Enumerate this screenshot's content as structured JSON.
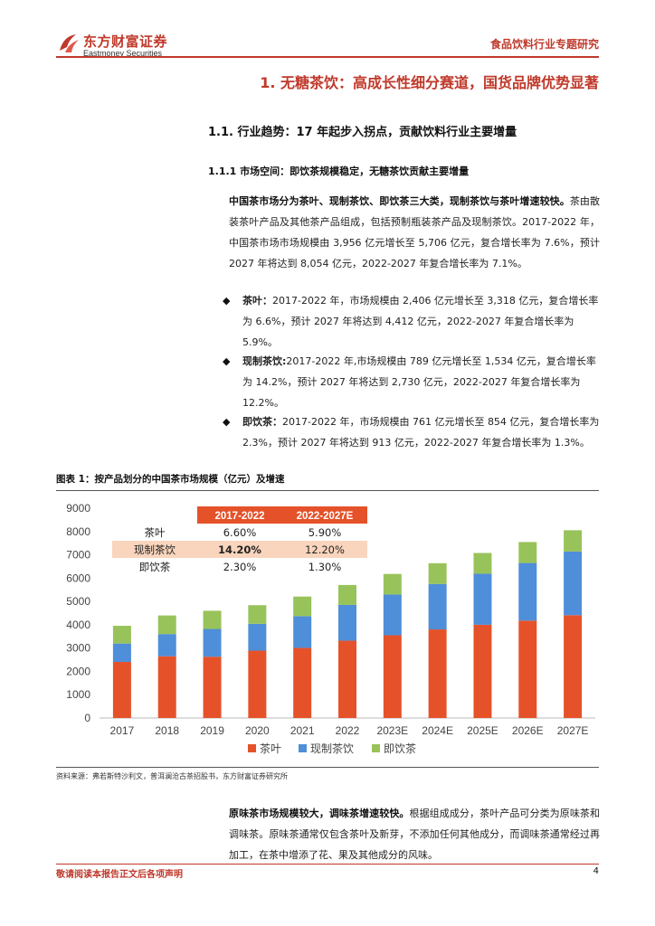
{
  "header": {
    "logo_cn": "东方财富证券",
    "logo_en": "Eastmoney Securities",
    "report_type": "食品饮料行业专题研究"
  },
  "section1": {
    "title": "1. 无糖茶饮：高成长性细分赛道，国货品牌优势显著"
  },
  "section1_1": {
    "title": "1.1. 行业趋势：17 年起步入拐点，贡献饮料行业主要增量"
  },
  "section1_1_1": {
    "title": "1.1.1 市场空间：即饮茶规模稳定，无糖茶饮贡献主要增量"
  },
  "intro": {
    "bold": "中国茶市场分为茶叶、现制茶饮、即饮茶三大类，现制茶饮与茶叶增速较快。",
    "text": "茶由散装茶叶产品及其他茶产品组成，包括预制瓶装茶产品及现制茶饮。2017-2022 年，中国茶市场市场规模由 3,956 亿元增长至 5,706 亿元，复合增长率为 7.6%，预计 2027 年将达到 8,054 亿元，2022-2027 年复合增长率为 7.1%。"
  },
  "bullets": [
    {
      "bold": "茶叶：",
      "text": "2017-2022 年，市场规模由 2,406 亿元增长至 3,318 亿元，复合增长率为 6.6%，预计 2027 年将达到 4,412 亿元，2022-2027 年复合增长率为 5.9%。"
    },
    {
      "bold": "现制茶饮:",
      "text": "2017-2022 年,市场规模由 789 亿元增长至 1,534 亿元，复合增长率为 14.2%，预计 2027 年将达到 2,730 亿元，2022-2027 年复合增长率为 12.2%。"
    },
    {
      "bold": "即饮茶：",
      "text": "2017-2022 年，市场规模由 761 亿元增长至 854 亿元，复合增长率为 2.3%，预计 2027 年将达到 913 亿元，2022-2027 年复合增长率为 1.3%。"
    }
  ],
  "figure": {
    "title": "图表 1：按产品划分的中国茶市场规模（亿元）及增速",
    "source": "资料来源：弗若斯特沙利文，普洱澜沧古茶招股书，东方财富证券研究所"
  },
  "chart_data": {
    "type": "bar",
    "stacked": true,
    "categories": [
      "2017",
      "2018",
      "2019",
      "2020",
      "2021",
      "2022",
      "2023E",
      "2024E",
      "2025E",
      "2026E",
      "2027E"
    ],
    "series": [
      {
        "name": "茶叶",
        "color": "#e5522a",
        "values": [
          2406,
          2650,
          2630,
          2890,
          3010,
          3318,
          3550,
          3800,
          4000,
          4180,
          4412
        ]
      },
      {
        "name": "现制茶饮",
        "color": "#4f8ed9",
        "values": [
          789,
          950,
          1190,
          1150,
          1360,
          1534,
          1750,
          1950,
          2190,
          2470,
          2730
        ]
      },
      {
        "name": "即饮茶",
        "color": "#98c35a",
        "values": [
          761,
          800,
          780,
          800,
          840,
          854,
          880,
          890,
          890,
          900,
          913
        ]
      }
    ],
    "ylim": [
      0,
      9000
    ],
    "yticks": [
      0,
      1000,
      2000,
      3000,
      4000,
      5000,
      6000,
      7000,
      8000,
      9000
    ],
    "legend_position": "bottom",
    "inset_table": {
      "headers": [
        "",
        "2017-2022",
        "2022-2027E"
      ],
      "rows": [
        [
          "茶叶",
          "6.60%",
          "5.90%"
        ],
        [
          "现制茶饮",
          "14.20%",
          "12.20%"
        ],
        [
          "即饮茶",
          "2.30%",
          "1.30%"
        ]
      ],
      "header_color": "#e5522a",
      "highlight_color": "#f9d5bd"
    }
  },
  "closing": {
    "bold": "原味茶市场规模较大，调味茶增速较快。",
    "text": "根据组成成分，茶叶产品可分类为原味茶和调味茶。原味茶通常仅包含茶叶及新芽，不添加任何其他成分，而调味茶通常经过再加工，在茶中增添了花、果及其他成分的风味。"
  },
  "footer": {
    "text": "敬请阅读本报告正文后各项声明",
    "page": "4"
  }
}
